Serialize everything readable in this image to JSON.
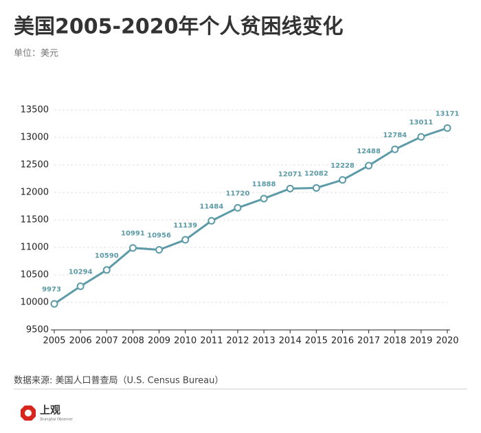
{
  "chart_data": {
    "type": "line",
    "title": "美国2005-2020年个人贫困线变化",
    "subtitle": "单位：美元",
    "categories": [
      "2005",
      "2006",
      "2007",
      "2008",
      "2009",
      "2010",
      "2011",
      "2012",
      "2013",
      "2014",
      "2015",
      "2016",
      "2017",
      "2018",
      "2019",
      "2020"
    ],
    "series": [
      {
        "name": "个人贫困线",
        "color": "#5b9aa6",
        "values": [
          9973,
          10294,
          10590,
          10991,
          10956,
          11139,
          11484,
          11720,
          11888,
          12071,
          12082,
          12228,
          12488,
          12784,
          13011,
          13171
        ]
      }
    ],
    "ylim": [
      9500,
      13500
    ],
    "yticks": [
      9500,
      10000,
      10500,
      11000,
      11500,
      12000,
      12500,
      13000,
      13500
    ],
    "grid": true,
    "source": "数据来源: 美国人口普查局（U.S. Census Bureau）"
  },
  "logo": {
    "name": "上观",
    "subtitle": "Shanghai Observer"
  }
}
